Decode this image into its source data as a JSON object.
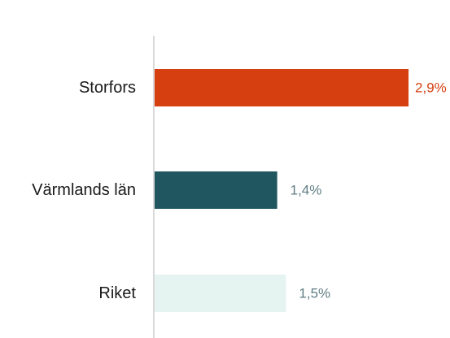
{
  "chart_data": {
    "type": "bar",
    "orientation": "horizontal",
    "categories": [
      "Storfors",
      "Värmlands län",
      "Riket"
    ],
    "values": [
      2.9,
      1.4,
      1.5
    ],
    "value_labels": [
      "2,9%",
      "1,4%",
      "1,5%"
    ],
    "bar_colors": [
      "#d63f0f",
      "#1f5660",
      "#e6f4f1"
    ],
    "label_colors": [
      "#d63f0f",
      "#5f7d84",
      "#5f7d84"
    ],
    "xlim": [
      0,
      3.2
    ],
    "grid": false,
    "legend": "none"
  }
}
